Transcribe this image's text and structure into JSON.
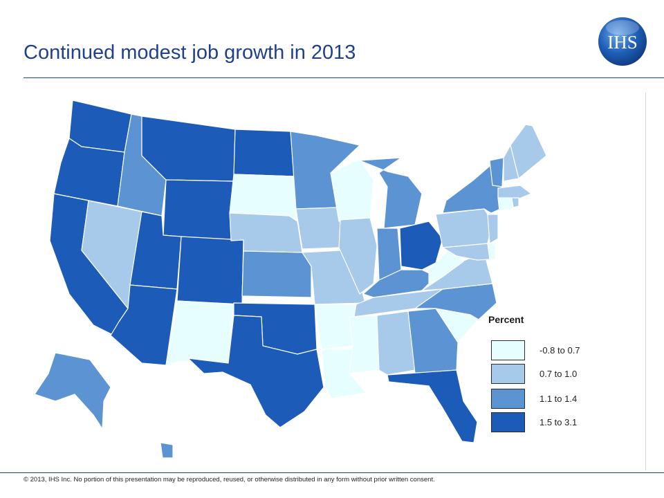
{
  "header": {
    "title": "Continued modest job growth in 2013",
    "logo_text": "IHS"
  },
  "colors": {
    "title": "#1f3f8f",
    "class_1": "#e6feff",
    "class_2": "#a7c9ea",
    "class_3": "#5c93d3",
    "class_4": "#1c5cb8"
  },
  "legend": {
    "title": "Percent",
    "items": [
      {
        "label": "-0.8 to 0.7",
        "color_key": "class_1"
      },
      {
        "label": "0.7 to 1.0",
        "color_key": "class_2"
      },
      {
        "label": "1.1 to 1.4",
        "color_key": "class_3"
      },
      {
        "label": "1.5 to 3.1",
        "color_key": "class_4"
      }
    ]
  },
  "states": [
    {
      "name": "Washington",
      "class": "class_4"
    },
    {
      "name": "Oregon",
      "class": "class_4"
    },
    {
      "name": "California",
      "class": "class_4"
    },
    {
      "name": "Nevada",
      "class": "class_2"
    },
    {
      "name": "Idaho",
      "class": "class_3"
    },
    {
      "name": "Montana",
      "class": "class_4"
    },
    {
      "name": "Wyoming",
      "class": "class_4"
    },
    {
      "name": "Utah",
      "class": "class_4"
    },
    {
      "name": "Arizona",
      "class": "class_4"
    },
    {
      "name": "Colorado",
      "class": "class_4"
    },
    {
      "name": "New Mexico",
      "class": "class_1"
    },
    {
      "name": "North Dakota",
      "class": "class_4"
    },
    {
      "name": "South Dakota",
      "class": "class_1"
    },
    {
      "name": "Nebraska",
      "class": "class_2"
    },
    {
      "name": "Kansas",
      "class": "class_3"
    },
    {
      "name": "Oklahoma",
      "class": "class_4"
    },
    {
      "name": "Texas",
      "class": "class_4"
    },
    {
      "name": "Minnesota",
      "class": "class_3"
    },
    {
      "name": "Iowa",
      "class": "class_2"
    },
    {
      "name": "Missouri",
      "class": "class_2"
    },
    {
      "name": "Arkansas",
      "class": "class_1"
    },
    {
      "name": "Louisiana",
      "class": "class_1"
    },
    {
      "name": "Wisconsin",
      "class": "class_1"
    },
    {
      "name": "Illinois",
      "class": "class_2"
    },
    {
      "name": "Michigan",
      "class": "class_3"
    },
    {
      "name": "Indiana",
      "class": "class_3"
    },
    {
      "name": "Ohio",
      "class": "class_4"
    },
    {
      "name": "Kentucky",
      "class": "class_3"
    },
    {
      "name": "Tennessee",
      "class": "class_2"
    },
    {
      "name": "Mississippi",
      "class": "class_1"
    },
    {
      "name": "Alabama",
      "class": "class_2"
    },
    {
      "name": "Georgia",
      "class": "class_3"
    },
    {
      "name": "Florida",
      "class": "class_4"
    },
    {
      "name": "South Carolina",
      "class": "class_1"
    },
    {
      "name": "North Carolina",
      "class": "class_3"
    },
    {
      "name": "Virginia",
      "class": "class_2"
    },
    {
      "name": "West Virginia",
      "class": "class_1"
    },
    {
      "name": "Pennsylvania",
      "class": "class_2"
    },
    {
      "name": "New York",
      "class": "class_3"
    },
    {
      "name": "Vermont",
      "class": "class_3"
    },
    {
      "name": "New Hampshire",
      "class": "class_2"
    },
    {
      "name": "Maine",
      "class": "class_2"
    },
    {
      "name": "Massachusetts",
      "class": "class_2"
    },
    {
      "name": "Connecticut",
      "class": "class_1"
    },
    {
      "name": "Rhode Island",
      "class": "class_2"
    },
    {
      "name": "New Jersey",
      "class": "class_2"
    },
    {
      "name": "Delaware",
      "class": "class_1"
    },
    {
      "name": "Maryland",
      "class": "class_2"
    },
    {
      "name": "Alaska",
      "class": "class_3"
    },
    {
      "name": "Hawaii",
      "class": "class_3"
    }
  ],
  "footer": {
    "copyright": "© 2013, IHS Inc. No portion of this presentation may be reproduced, reused, or otherwise distributed in any form without prior written consent."
  }
}
